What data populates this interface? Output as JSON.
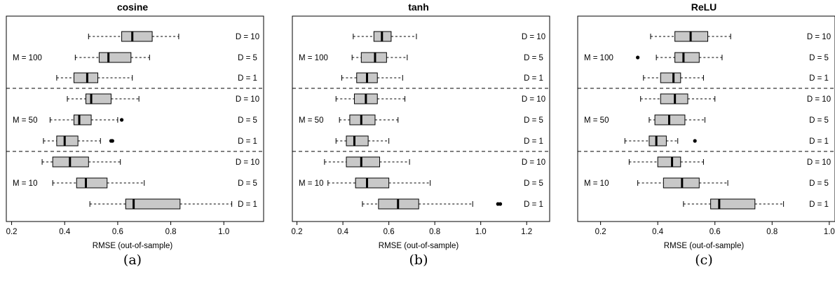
{
  "chart_data": [
    {
      "type": "boxplot",
      "title": "cosine",
      "panel_label": "(a)",
      "xlabel": "RMSE (out-of-sample)",
      "xlim": [
        0.18,
        1.15
      ],
      "xticks": [
        0.2,
        0.4,
        0.6,
        0.8,
        1.0
      ],
      "xtick_labels": [
        "0.2",
        "0.4",
        "0.6",
        "0.8",
        "1.0"
      ],
      "groups": [
        "M = 100",
        "M = 50",
        "M = 10"
      ],
      "boxes": [
        {
          "group": "M = 100",
          "label": "D = 10",
          "whisker_low": 0.49,
          "q1": 0.615,
          "median": 0.655,
          "q3": 0.73,
          "whisker_high": 0.83,
          "outliers": []
        },
        {
          "group": "M = 100",
          "label": "D = 5",
          "whisker_low": 0.44,
          "q1": 0.53,
          "median": 0.565,
          "q3": 0.65,
          "whisker_high": 0.72,
          "outliers": []
        },
        {
          "group": "M = 100",
          "label": "D = 1",
          "whisker_low": 0.37,
          "q1": 0.435,
          "median": 0.485,
          "q3": 0.525,
          "whisker_high": 0.655,
          "outliers": []
        },
        {
          "group": "M = 50",
          "label": "D = 10",
          "whisker_low": 0.41,
          "q1": 0.48,
          "median": 0.5,
          "q3": 0.575,
          "whisker_high": 0.68,
          "outliers": []
        },
        {
          "group": "M = 50",
          "label": "D = 5",
          "whisker_low": 0.345,
          "q1": 0.435,
          "median": 0.455,
          "q3": 0.5,
          "whisker_high": 0.6,
          "outliers": [
            0.615
          ]
        },
        {
          "group": "M = 50",
          "label": "D = 1",
          "whisker_low": 0.32,
          "q1": 0.37,
          "median": 0.4,
          "q3": 0.45,
          "whisker_high": 0.535,
          "outliers": [
            0.575,
            0.58
          ]
        },
        {
          "group": "M = 10",
          "label": "D = 10",
          "whisker_low": 0.315,
          "q1": 0.355,
          "median": 0.42,
          "q3": 0.49,
          "whisker_high": 0.61,
          "outliers": []
        },
        {
          "group": "M = 10",
          "label": "D = 5",
          "whisker_low": 0.355,
          "q1": 0.445,
          "median": 0.48,
          "q3": 0.56,
          "whisker_high": 0.7,
          "outliers": []
        },
        {
          "group": "M = 10",
          "label": "D = 1",
          "whisker_low": 0.495,
          "q1": 0.63,
          "median": 0.66,
          "q3": 0.835,
          "whisker_high": 1.03,
          "outliers": []
        }
      ]
    },
    {
      "type": "boxplot",
      "title": "tanh",
      "panel_label": "(b)",
      "xlabel": "RMSE (out-of-sample)",
      "xlim": [
        0.18,
        1.3
      ],
      "xticks": [
        0.2,
        0.4,
        0.6,
        0.8,
        1.0,
        1.2
      ],
      "xtick_labels": [
        "0.2",
        "0.4",
        "0.6",
        "0.8",
        "1.0",
        "1.2"
      ],
      "groups": [
        "M = 100",
        "M = 50",
        "M = 10"
      ],
      "boxes": [
        {
          "group": "M = 100",
          "label": "D = 10",
          "whisker_low": 0.445,
          "q1": 0.535,
          "median": 0.57,
          "q3": 0.61,
          "whisker_high": 0.72,
          "outliers": []
        },
        {
          "group": "M = 100",
          "label": "D = 5",
          "whisker_low": 0.44,
          "q1": 0.48,
          "median": 0.54,
          "q3": 0.59,
          "whisker_high": 0.68,
          "outliers": []
        },
        {
          "group": "M = 100",
          "label": "D = 1",
          "whisker_low": 0.395,
          "q1": 0.46,
          "median": 0.505,
          "q3": 0.55,
          "whisker_high": 0.66,
          "outliers": []
        },
        {
          "group": "M = 50",
          "label": "D = 10",
          "whisker_low": 0.37,
          "q1": 0.45,
          "median": 0.5,
          "q3": 0.55,
          "whisker_high": 0.67,
          "outliers": []
        },
        {
          "group": "M = 50",
          "label": "D = 5",
          "whisker_low": 0.385,
          "q1": 0.43,
          "median": 0.48,
          "q3": 0.54,
          "whisker_high": 0.64,
          "outliers": []
        },
        {
          "group": "M = 50",
          "label": "D = 1",
          "whisker_low": 0.37,
          "q1": 0.415,
          "median": 0.45,
          "q3": 0.51,
          "whisker_high": 0.6,
          "outliers": []
        },
        {
          "group": "M = 10",
          "label": "D = 10",
          "whisker_low": 0.32,
          "q1": 0.415,
          "median": 0.48,
          "q3": 0.56,
          "whisker_high": 0.69,
          "outliers": []
        },
        {
          "group": "M = 10",
          "label": "D = 5",
          "whisker_low": 0.335,
          "q1": 0.455,
          "median": 0.505,
          "q3": 0.6,
          "whisker_high": 0.78,
          "outliers": []
        },
        {
          "group": "M = 10",
          "label": "D = 1",
          "whisker_low": 0.485,
          "q1": 0.555,
          "median": 0.64,
          "q3": 0.73,
          "whisker_high": 0.965,
          "outliers": [
            1.075,
            1.085
          ]
        }
      ]
    },
    {
      "type": "boxplot",
      "title": "ReLU",
      "panel_label": "(c)",
      "xlabel": "RMSE (out-of-sample)",
      "xlim": [
        0.12,
        1.02
      ],
      "xticks": [
        0.2,
        0.4,
        0.6,
        0.8,
        1.0
      ],
      "xtick_labels": [
        "0.2",
        "0.4",
        "0.6",
        "0.8",
        "1.0"
      ],
      "groups": [
        "M = 100",
        "M = 50",
        "M = 10"
      ],
      "boxes": [
        {
          "group": "M = 100",
          "label": "D = 10",
          "whisker_low": 0.375,
          "q1": 0.46,
          "median": 0.515,
          "q3": 0.575,
          "whisker_high": 0.655,
          "outliers": []
        },
        {
          "group": "M = 100",
          "label": "D = 5",
          "whisker_low": 0.395,
          "q1": 0.46,
          "median": 0.49,
          "q3": 0.545,
          "whisker_high": 0.625,
          "outliers": [
            0.33
          ]
        },
        {
          "group": "M = 100",
          "label": "D = 1",
          "whisker_low": 0.35,
          "q1": 0.41,
          "median": 0.455,
          "q3": 0.48,
          "whisker_high": 0.56,
          "outliers": []
        },
        {
          "group": "M = 50",
          "label": "D = 10",
          "whisker_low": 0.34,
          "q1": 0.41,
          "median": 0.46,
          "q3": 0.505,
          "whisker_high": 0.6,
          "outliers": []
        },
        {
          "group": "M = 50",
          "label": "D = 5",
          "whisker_low": 0.37,
          "q1": 0.39,
          "median": 0.44,
          "q3": 0.495,
          "whisker_high": 0.565,
          "outliers": []
        },
        {
          "group": "M = 50",
          "label": "D = 1",
          "whisker_low": 0.285,
          "q1": 0.37,
          "median": 0.395,
          "q3": 0.43,
          "whisker_high": 0.47,
          "outliers": [
            0.53
          ]
        },
        {
          "group": "M = 10",
          "label": "D = 10",
          "whisker_low": 0.3,
          "q1": 0.4,
          "median": 0.45,
          "q3": 0.48,
          "whisker_high": 0.56,
          "outliers": []
        },
        {
          "group": "M = 10",
          "label": "D = 5",
          "whisker_low": 0.33,
          "q1": 0.42,
          "median": 0.485,
          "q3": 0.545,
          "whisker_high": 0.645,
          "outliers": []
        },
        {
          "group": "M = 10",
          "label": "D = 1",
          "whisker_low": 0.49,
          "q1": 0.585,
          "median": 0.615,
          "q3": 0.74,
          "whisker_high": 0.84,
          "outliers": []
        }
      ]
    }
  ]
}
